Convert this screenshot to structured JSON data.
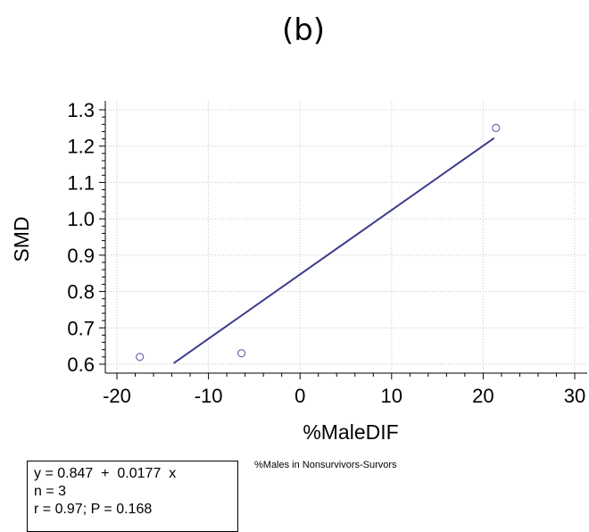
{
  "panel_label": "(b)",
  "note": "%Males in Nonsurvivors-Survors",
  "stats": {
    "equation": "y = 0.847  +  0.0177  x",
    "n": "n = 3",
    "r_p": "r = 0.97; P = 0.168"
  },
  "chart_data": {
    "type": "scatter",
    "xlabel": "%MaleDIF",
    "ylabel": "SMD",
    "xlim": [
      -20,
      30
    ],
    "ylim": [
      0.6,
      1.3
    ],
    "x_ticks": [
      -20,
      -10,
      0,
      10,
      20,
      30
    ],
    "y_ticks": [
      "0.6",
      "0.7",
      "0.8",
      "0.9",
      "1.0",
      "1.1",
      "1.2",
      "1.3"
    ],
    "grid": true,
    "points": [
      {
        "x": -17.5,
        "y": 0.62
      },
      {
        "x": -6.4,
        "y": 0.63
      },
      {
        "x": 21.4,
        "y": 1.25
      }
    ],
    "regression": {
      "intercept": 0.847,
      "slope": 0.0177,
      "x_start": -13.8,
      "x_end": 21.2
    },
    "colors": {
      "line": "#3c3c8c",
      "marker": "#6a6ab0",
      "grid": "#c8c8c8"
    }
  }
}
